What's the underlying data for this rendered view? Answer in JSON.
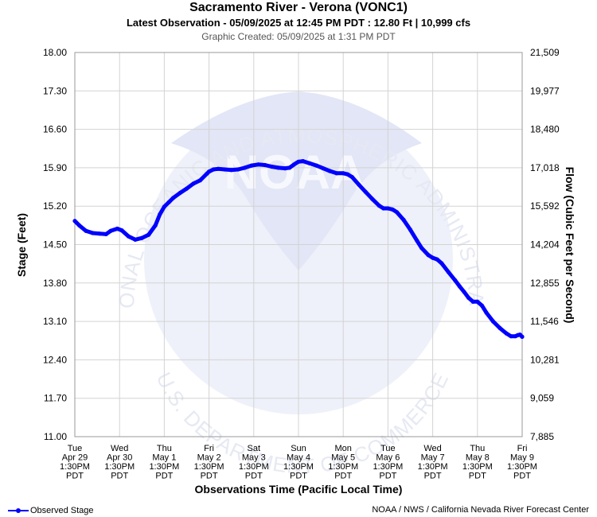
{
  "header": {
    "title": "Sacramento River - Verona (VONC1)",
    "subtitle": "Latest Observation - 05/09/2025 at 12:45 PM PDT : 12.80 Ft | 10,999 cfs",
    "created": "Graphic Created: 05/09/2025 at 1:31 PM PDT"
  },
  "footer": {
    "legend_label": "Observed Stage",
    "credit": "NOAA / NWS / California Nevada River Forecast Center"
  },
  "watermark": {
    "top_text": "NATIONAL OCEANIC AND ATMOSPHERIC ADMINISTRATION",
    "bottom_text": "U.S. DEPARTMENT OF COMMERCE",
    "logo_text": "NOAA"
  },
  "colors": {
    "series": "#0000ff",
    "grid": "#d3d3d3",
    "watermark": "#e8ecf8"
  },
  "chart_data": {
    "type": "line",
    "title": "Sacramento River - Verona (VONC1)",
    "xlabel": "Observations Time (Pacific Local Time)",
    "ylabel": "Stage (Feet)",
    "y2label": "Flow (Cubic Feet per Second)",
    "ylim": [
      11.0,
      18.0
    ],
    "xlim": [
      0,
      10
    ],
    "y_ticks": [
      "18.00",
      "17.30",
      "16.60",
      "15.90",
      "15.20",
      "14.50",
      "13.80",
      "13.10",
      "12.40",
      "11.70",
      "11.00"
    ],
    "y2_ticks": [
      "21,509",
      "19,977",
      "18,480",
      "17,018",
      "15,592",
      "14,204",
      "12,855",
      "11,546",
      "10,281",
      "9,059",
      "7,885"
    ],
    "x_ticks": [
      [
        "Tue",
        "Apr 29",
        "1:30PM",
        "PDT"
      ],
      [
        "Wed",
        "Apr 30",
        "1:30PM",
        "PDT"
      ],
      [
        "Thu",
        "May 1",
        "1:30PM",
        "PDT"
      ],
      [
        "Fri",
        "May 2",
        "1:30PM",
        "PDT"
      ],
      [
        "Sat",
        "May 3",
        "1:30PM",
        "PDT"
      ],
      [
        "Sun",
        "May 4",
        "1:30PM",
        "PDT"
      ],
      [
        "Mon",
        "May 5",
        "1:30PM",
        "PDT"
      ],
      [
        "Tue",
        "May 6",
        "1:30PM",
        "PDT"
      ],
      [
        "Wed",
        "May 7",
        "1:30PM",
        "PDT"
      ],
      [
        "Thu",
        "May 8",
        "1:30PM",
        "PDT"
      ],
      [
        "Fri",
        "May 9",
        "1:30PM",
        "PDT"
      ]
    ],
    "grid": true,
    "legend": "bottom-left",
    "series": [
      {
        "name": "Observed Stage",
        "x": [
          0,
          0.1,
          0.25,
          0.4,
          0.55,
          0.7,
          0.8,
          0.95,
          1.05,
          1.2,
          1.35,
          1.5,
          1.65,
          1.8,
          1.9,
          2.0,
          2.1,
          2.2,
          2.35,
          2.5,
          2.65,
          2.8,
          2.95,
          3.0,
          3.1,
          3.2,
          3.35,
          3.5,
          3.65,
          3.8,
          3.95,
          4.1,
          4.25,
          4.4,
          4.55,
          4.7,
          4.8,
          4.9,
          5.0,
          5.1,
          5.25,
          5.4,
          5.55,
          5.7,
          5.85,
          6.0,
          6.1,
          6.2,
          6.35,
          6.5,
          6.65,
          6.8,
          6.9,
          7.0,
          7.1,
          7.2,
          7.35,
          7.5,
          7.65,
          7.75,
          7.9,
          8.0,
          8.1,
          8.2,
          8.35,
          8.5,
          8.6,
          8.7,
          8.8,
          8.9,
          9.0,
          9.1,
          9.2,
          9.35,
          9.5,
          9.65,
          9.75,
          9.85,
          9.9,
          9.95,
          10.0
        ],
        "y": [
          14.93,
          14.85,
          14.75,
          14.71,
          14.7,
          14.69,
          14.75,
          14.79,
          14.76,
          14.65,
          14.59,
          14.62,
          14.68,
          14.85,
          15.05,
          15.19,
          15.27,
          15.35,
          15.44,
          15.52,
          15.61,
          15.67,
          15.79,
          15.83,
          15.87,
          15.88,
          15.87,
          15.86,
          15.87,
          15.9,
          15.94,
          15.96,
          15.95,
          15.92,
          15.9,
          15.89,
          15.9,
          15.96,
          16.01,
          16.02,
          15.98,
          15.94,
          15.89,
          15.84,
          15.8,
          15.8,
          15.78,
          15.73,
          15.59,
          15.46,
          15.33,
          15.21,
          15.16,
          15.16,
          15.14,
          15.09,
          14.95,
          14.77,
          14.57,
          14.44,
          14.31,
          14.26,
          14.23,
          14.16,
          14.0,
          13.85,
          13.74,
          13.64,
          13.53,
          13.46,
          13.46,
          13.39,
          13.26,
          13.1,
          12.98,
          12.88,
          12.83,
          12.83,
          12.85,
          12.86,
          12.82
        ]
      }
    ]
  }
}
